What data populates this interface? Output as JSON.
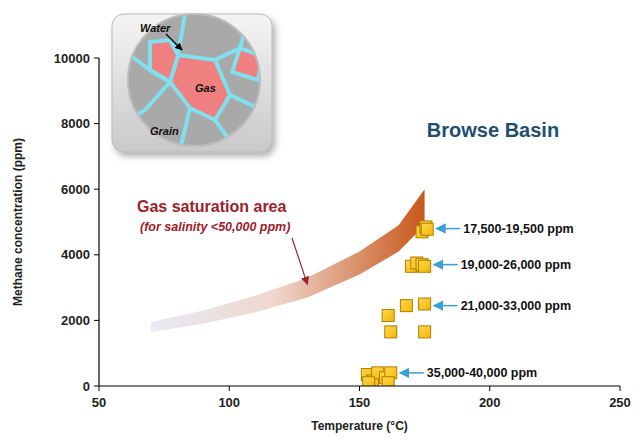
{
  "chart_data": {
    "type": "scatter",
    "title": "Browse Basin",
    "x_label": "Temperature (°C)",
    "y_label": "Methane concentration (ppm)",
    "xlim": [
      50,
      250
    ],
    "xticks": [
      50,
      100,
      150,
      200,
      250
    ],
    "ylim": [
      0,
      10000
    ],
    "yticks": [
      0,
      2000,
      4000,
      6000,
      8000,
      10000
    ],
    "grid": false,
    "series": [
      {
        "type": "scatter",
        "marker": "square",
        "color": "#f2b705",
        "x": [
          174,
          175.5,
          176,
          170,
          172,
          174,
          175,
          161,
          168,
          175,
          162,
          175,
          153,
          155,
          157,
          160,
          162,
          153.5,
          161
        ],
        "values": [
          4700,
          4850,
          4780,
          3650,
          3750,
          3700,
          3650,
          2150,
          2450,
          2500,
          1650,
          1650,
          350,
          150,
          400,
          250,
          400,
          100,
          100
        ]
      },
      {
        "type": "area",
        "color": "#c8581a",
        "x": [
          70,
          90,
          110,
          130,
          150,
          165,
          175
        ],
        "values": [
          1950,
          2300,
          2750,
          3300,
          4100,
          4900,
          6000
        ],
        "lower": [
          1650,
          1900,
          2250,
          2700,
          3400,
          4100,
          4900
        ]
      }
    ],
    "annotations": [
      {
        "text": "17,500-19,500 ppm",
        "x": 176,
        "y": 4800
      },
      {
        "text": "19,000-26,000 ppm",
        "x": 175,
        "y": 3700
      },
      {
        "text": "21,000-33,000 ppm",
        "x": 175,
        "y": 2450
      },
      {
        "text": "35,000-40,000 ppm",
        "x": 162,
        "y": 400
      }
    ],
    "band_label": {
      "lines": [
        "Gas saturation area",
        "(for salinity <50,000 ppm)"
      ],
      "x": 130,
      "y": 3100
    },
    "inset": {
      "labels": [
        "Water",
        "Gas",
        "Grain"
      ]
    }
  }
}
